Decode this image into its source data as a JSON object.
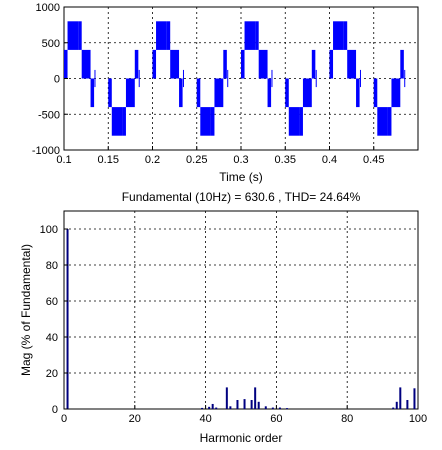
{
  "chart_data": [
    {
      "type": "line",
      "title": "",
      "xlabel": "Time (s)",
      "ylabel": "",
      "xlim": [
        0.1,
        0.5
      ],
      "ylim": [
        -1000,
        1000
      ],
      "xticks": [
        "0.1",
        "0.15",
        "0.2",
        "0.25",
        "0.3",
        "0.35",
        "0.4",
        "0.45"
      ],
      "yticks": [
        "1000",
        "500",
        "0",
        "-500",
        "-1000"
      ],
      "grid": true,
      "series_color": "#0000ff",
      "fundamental_hz": 10,
      "series": [
        {
          "description": "multilevel PWM voltage, 5 levels",
          "levels": [
            800,
            400,
            0,
            -400,
            -800
          ],
          "step_sequence_times": [
            0.0,
            0.006,
            0.018,
            0.032,
            0.044,
            0.05,
            0.056,
            0.068,
            0.082,
            0.094,
            0.1
          ],
          "step_sequence_values": [
            0,
            400,
            800,
            400,
            0,
            -400,
            -800,
            -400,
            0,
            0,
            0
          ]
        }
      ]
    },
    {
      "type": "bar",
      "title": "Fundamental (10Hz) = 630.6 , THD= 24.64%",
      "xlabel": "Harmonic order",
      "ylabel": "Mag (% of Fundamental)",
      "xlim": [
        0,
        100
      ],
      "ylim": [
        0,
        110
      ],
      "xticks": [
        "0",
        "20",
        "40",
        "60",
        "80",
        "100"
      ],
      "yticks": [
        "100",
        "80",
        "60",
        "40",
        "20",
        "0"
      ],
      "grid": true,
      "series_color": "#000080",
      "x": [
        1,
        39,
        41,
        42,
        43,
        46,
        47,
        49,
        51,
        53,
        54,
        55,
        57,
        59,
        61,
        63,
        93,
        94,
        95,
        97,
        99
      ],
      "values": [
        100,
        0.6,
        1.2,
        2.8,
        0.8,
        12,
        1.5,
        5,
        5.5,
        5,
        12,
        4,
        1.5,
        0.8,
        0.8,
        0.5,
        0.8,
        4,
        12,
        5,
        11.5
      ]
    }
  ]
}
